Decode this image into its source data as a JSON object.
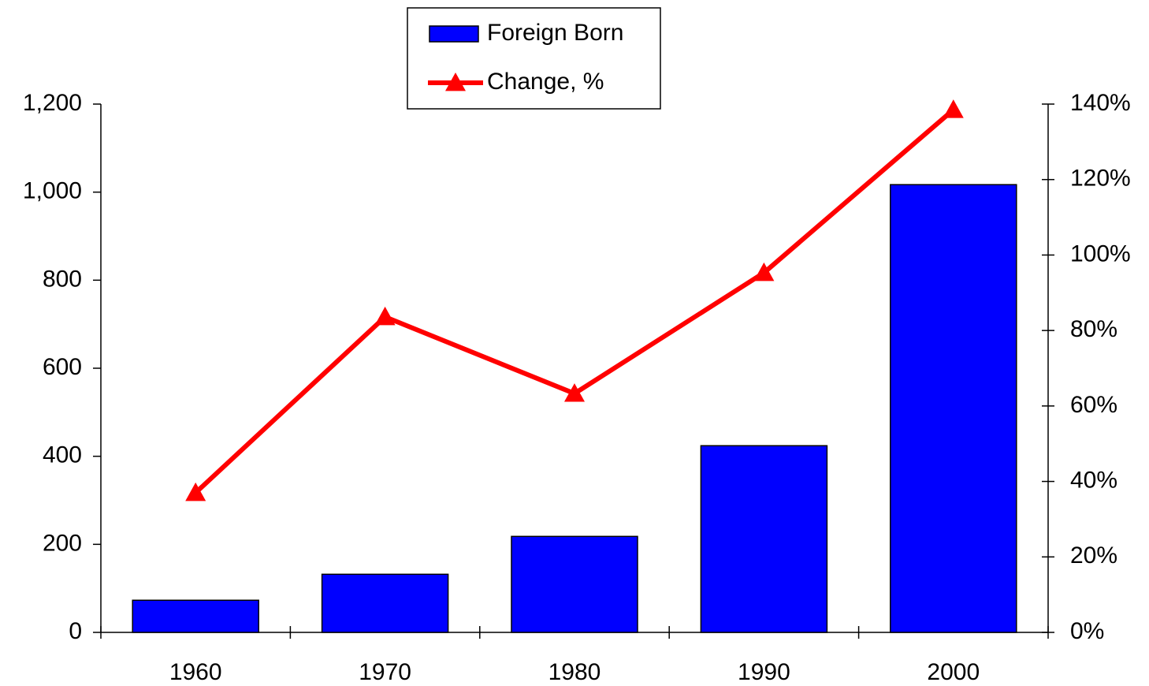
{
  "chart_data": {
    "type": "bar_line",
    "categories": [
      "1960",
      "1970",
      "1980",
      "1990",
      "2000"
    ],
    "series": [
      {
        "name": "Foreign Born",
        "type": "bar",
        "color": "#0000ff",
        "values": [
          73,
          132,
          218,
          424,
          1017
        ]
      },
      {
        "name": "Change, %",
        "type": "line",
        "axis": "y2",
        "color": "#ff0000",
        "values": [
          37,
          83.6,
          63.3,
          95.3,
          138.5
        ]
      }
    ],
    "ylim": [
      0,
      1200
    ],
    "yticks": [
      0,
      200,
      400,
      600,
      800,
      {
        "value": 1000,
        "label": "1,000"
      },
      {
        "value": 1200,
        "label": "1,200"
      }
    ],
    "y2lim": [
      0,
      140
    ],
    "y2ticks": [
      {
        "value": 0,
        "label": "0%"
      },
      {
        "value": 20,
        "label": "20%"
      },
      {
        "value": 40,
        "label": "40%"
      },
      {
        "value": 60,
        "label": "60%"
      },
      {
        "value": 80,
        "label": "80%"
      },
      {
        "value": 100,
        "label": "100%"
      },
      {
        "value": 120,
        "label": "120%"
      },
      {
        "value": 140,
        "label": "140%"
      }
    ],
    "legend": "top"
  }
}
